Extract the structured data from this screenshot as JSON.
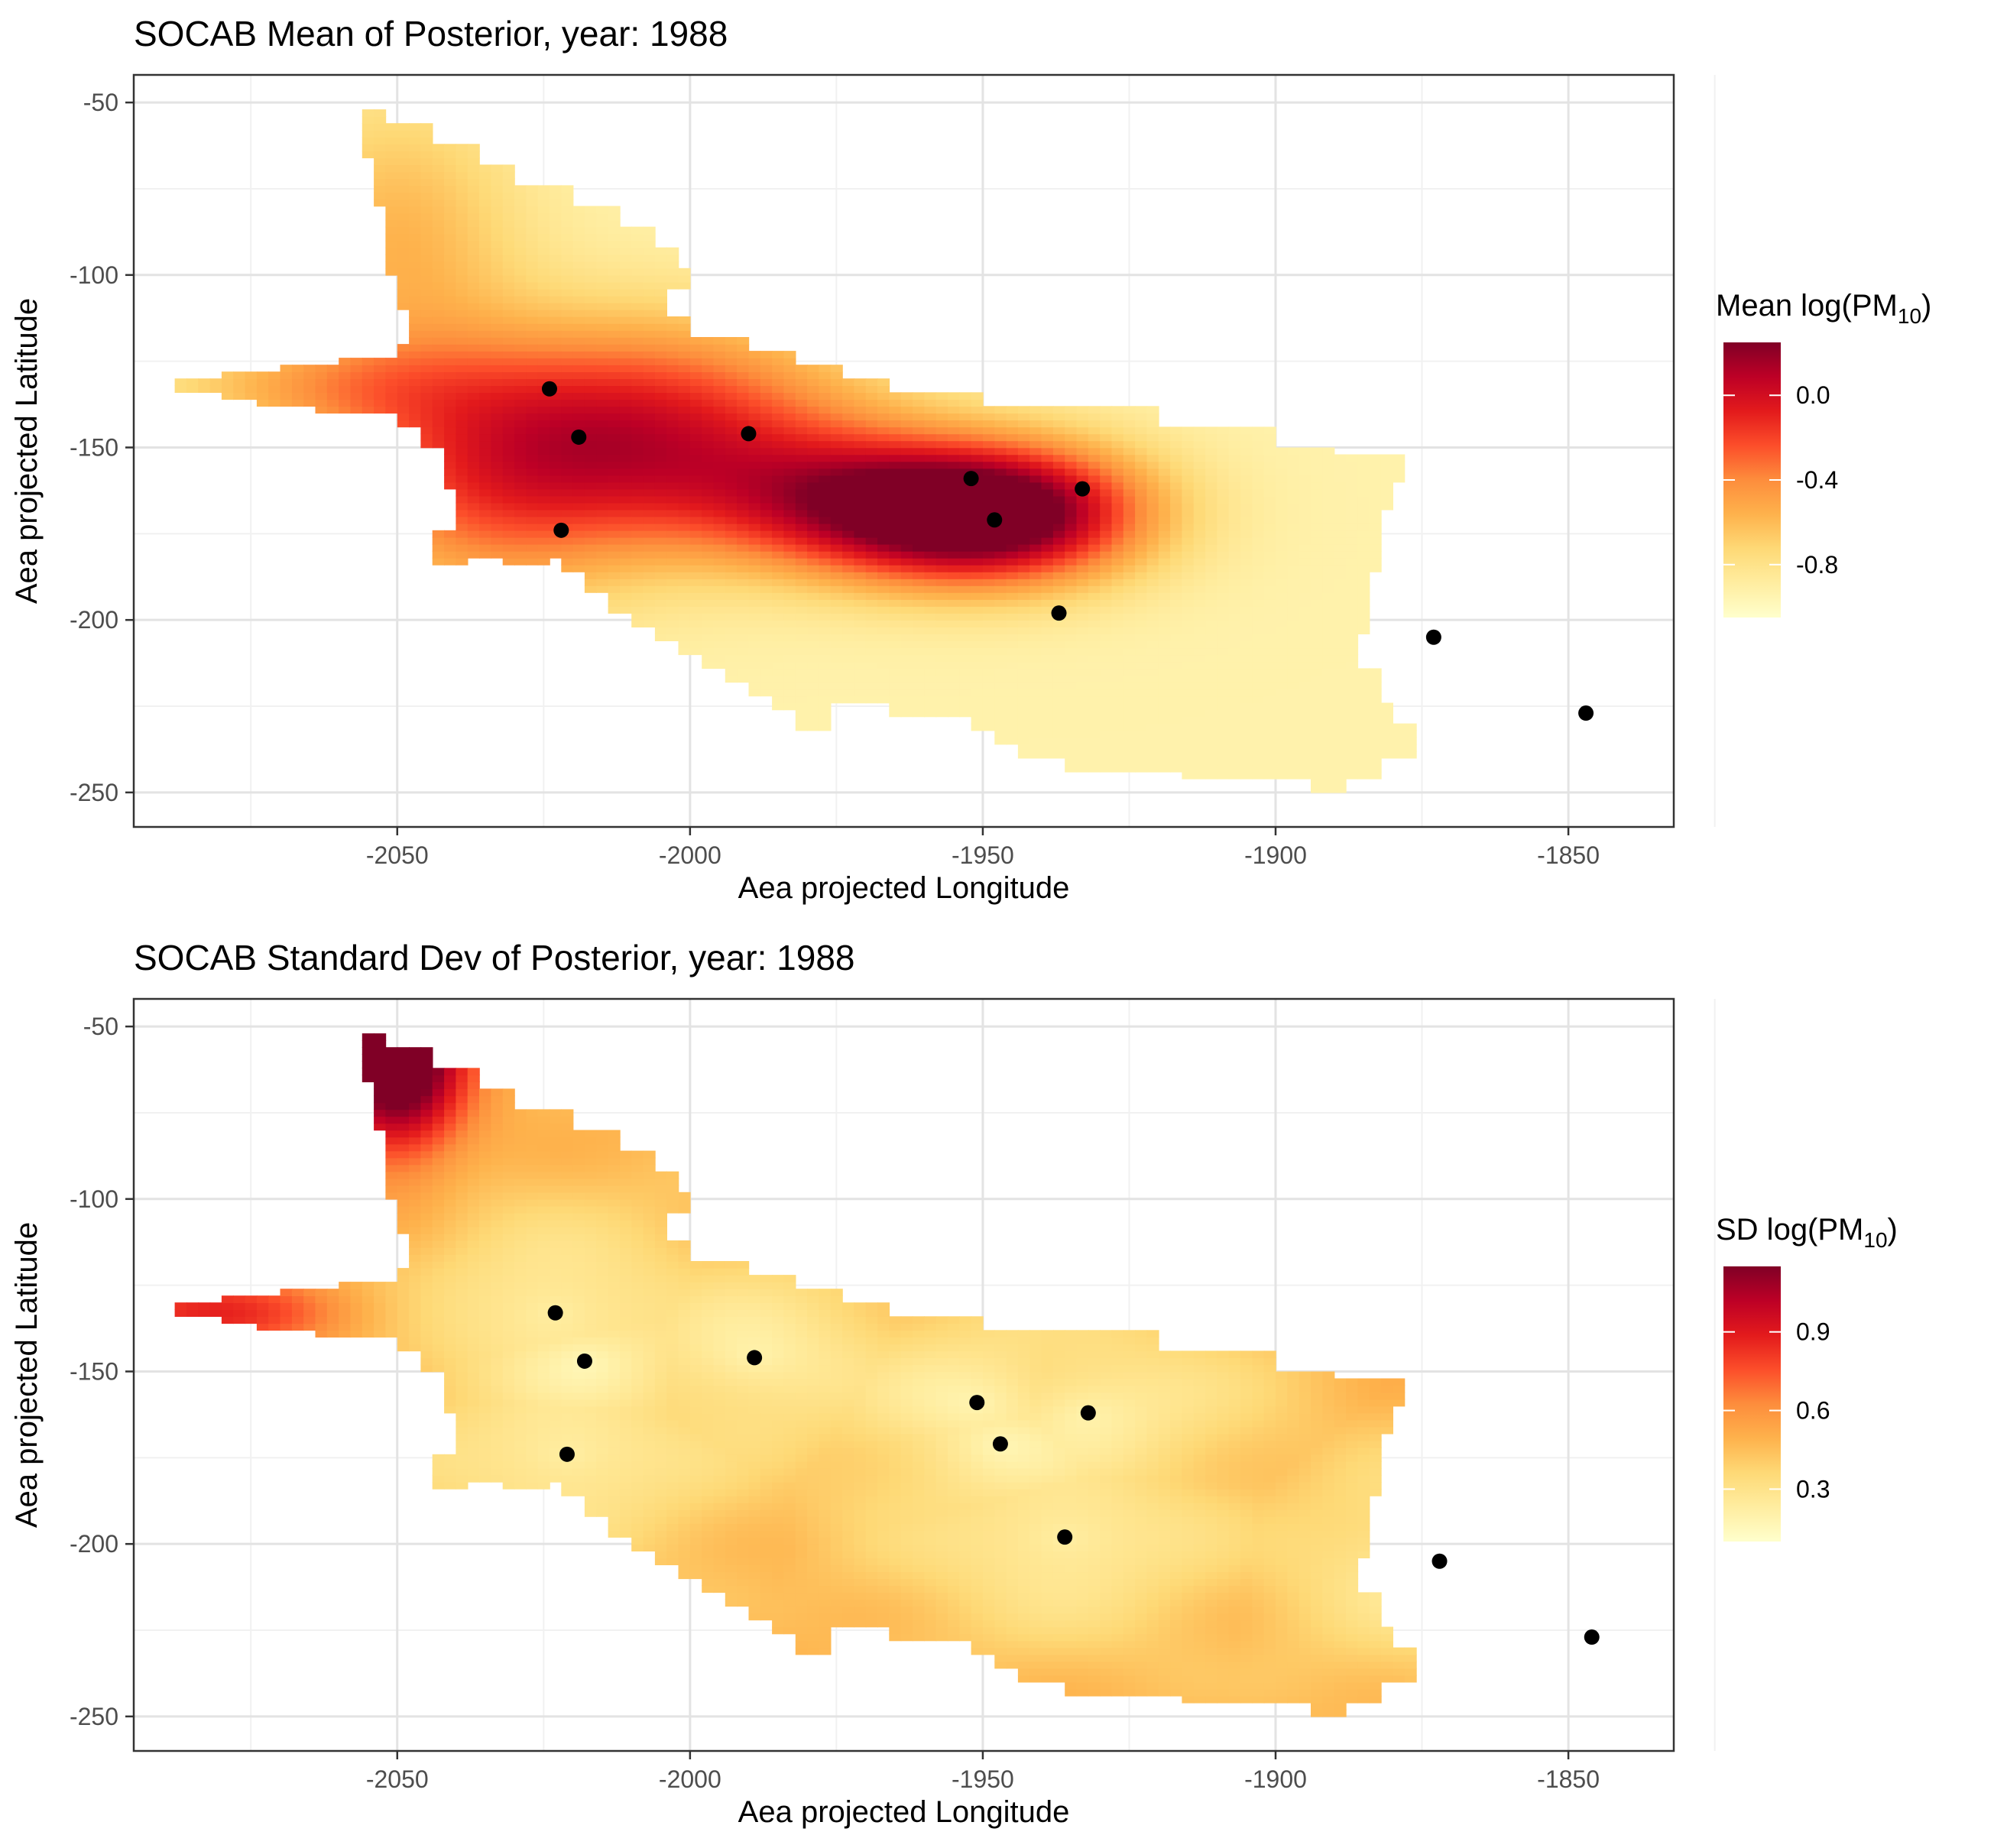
{
  "chart_data": [
    {
      "type": "heatmap",
      "title": "SOCAB Mean of Posterior, year:  1988",
      "xlabel": "Aea projected Longitude",
      "ylabel": "Aea projected Latitude",
      "xlim": [
        -2095,
        -1832
      ],
      "ylim": [
        -260,
        -42
      ],
      "x_ticks": [
        -2050,
        -2000,
        -1950,
        -1900,
        -1850
      ],
      "y_ticks": [
        -50,
        -100,
        -150,
        -200,
        -250
      ],
      "x_tick_labels": [
        "-2050",
        "-2000",
        "-1950",
        "-1900",
        "-1850"
      ],
      "y_tick_labels": [
        "-50",
        "-100",
        "-150",
        "-200",
        "-250"
      ],
      "grid": true,
      "legend": {
        "title_main": "Mean log(PM",
        "title_sub": "10",
        "title_end": ")",
        "position": "right",
        "range": [
          -1.05,
          0.25
        ],
        "ticks": [
          0.0,
          -0.4,
          -0.8
        ],
        "tick_labels": [
          "0.0",
          "-0.4",
          "-0.8"
        ],
        "colors": [
          "#ffffcc",
          "#ffeda0",
          "#fed976",
          "#feb24c",
          "#fd8d3c",
          "#fc4e2a",
          "#e31a1c",
          "#bd0026",
          "#800026"
        ]
      },
      "stations": [
        {
          "x": -2024,
          "y": -133
        },
        {
          "x": -2019,
          "y": -147
        },
        {
          "x": -2022,
          "y": -174
        },
        {
          "x": -1990,
          "y": -146
        },
        {
          "x": -1952,
          "y": -159
        },
        {
          "x": -1948,
          "y": -171
        },
        {
          "x": -1933,
          "y": -162
        },
        {
          "x": -1937,
          "y": -198
        },
        {
          "x": -1873,
          "y": -205
        },
        {
          "x": -1847,
          "y": -227
        }
      ],
      "surface": {
        "base": -0.93,
        "hotspots": [
          {
            "x": -1955,
            "y": -170,
            "amp": 0.95,
            "sx": 18,
            "sy": 14
          },
          {
            "x": -1940,
            "y": -168,
            "amp": 0.55,
            "sx": 16,
            "sy": 14
          },
          {
            "x": -2005,
            "y": -145,
            "amp": 0.8,
            "sx": 25,
            "sy": 22
          },
          {
            "x": -2035,
            "y": -160,
            "amp": 0.55,
            "sx": 20,
            "sy": 25
          },
          {
            "x": -2050,
            "y": -90,
            "amp": 0.35,
            "sx": 15,
            "sy": 30
          },
          {
            "x": -2065,
            "y": -132,
            "amp": 0.3,
            "sx": 20,
            "sy": 10
          },
          {
            "x": -1975,
            "y": -165,
            "amp": 0.5,
            "sx": 20,
            "sy": 14
          }
        ]
      }
    },
    {
      "type": "heatmap",
      "title": "SOCAB Standard Dev of Posterior, year:  1988",
      "xlabel": "Aea projected Longitude",
      "ylabel": "Aea projected Latitude",
      "xlim": [
        -2095,
        -1832
      ],
      "ylim": [
        -260,
        -42
      ],
      "x_ticks": [
        -2050,
        -2000,
        -1950,
        -1900,
        -1850
      ],
      "y_ticks": [
        -50,
        -100,
        -150,
        -200,
        -250
      ],
      "x_tick_labels": [
        "-2050",
        "-2000",
        "-1950",
        "-1900",
        "-1850"
      ],
      "y_tick_labels": [
        "-50",
        "-100",
        "-150",
        "-200",
        "-250"
      ],
      "grid": true,
      "legend": {
        "title_main": "SD log(PM",
        "title_sub": "10",
        "title_end": ")",
        "position": "right",
        "range": [
          0.1,
          1.15
        ],
        "ticks": [
          0.9,
          0.6,
          0.3
        ],
        "tick_labels": [
          "0.9",
          "0.6",
          "0.3"
        ],
        "colors": [
          "#ffffcc",
          "#ffeda0",
          "#fed976",
          "#feb24c",
          "#fd8d3c",
          "#fc4e2a",
          "#e31a1c",
          "#bd0026",
          "#800026"
        ]
      },
      "stations": [
        {
          "x": -2023,
          "y": -133
        },
        {
          "x": -2018,
          "y": -147
        },
        {
          "x": -2021,
          "y": -174
        },
        {
          "x": -1989,
          "y": -146
        },
        {
          "x": -1951,
          "y": -159
        },
        {
          "x": -1947,
          "y": -171
        },
        {
          "x": -1932,
          "y": -162
        },
        {
          "x": -1936,
          "y": -198
        },
        {
          "x": -1872,
          "y": -205
        },
        {
          "x": -1846,
          "y": -227
        }
      ],
      "surface": {
        "mode": "sd",
        "hotspots": [
          {
            "x": -2050,
            "y": -55,
            "amp": 0.9,
            "sx": 8,
            "sy": 22
          },
          {
            "x": -2080,
            "y": -133,
            "amp": 0.35,
            "sx": 18,
            "sy": 8
          }
        ]
      }
    }
  ],
  "region_outline": [
    [
      -2056,
      -52
    ],
    [
      -2052,
      -52
    ],
    [
      -2052,
      -56
    ],
    [
      -2044,
      -56
    ],
    [
      -2044,
      -62
    ],
    [
      -2036,
      -62
    ],
    [
      -2036,
      -68
    ],
    [
      -2030,
      -68
    ],
    [
      -2030,
      -74
    ],
    [
      -2020,
      -74
    ],
    [
      -2020,
      -80
    ],
    [
      -2012,
      -80
    ],
    [
      -2012,
      -86
    ],
    [
      -2006,
      -86
    ],
    [
      -2006,
      -92
    ],
    [
      -2002,
      -92
    ],
    [
      -2002,
      -97
    ],
    [
      -2000,
      -97
    ],
    [
      -2000,
      -104
    ],
    [
      -2004,
      -104
    ],
    [
      -2004,
      -112
    ],
    [
      -2000,
      -112
    ],
    [
      -2000,
      -118
    ],
    [
      -1990,
      -118
    ],
    [
      -1990,
      -122
    ],
    [
      -1982,
      -122
    ],
    [
      -1982,
      -126
    ],
    [
      -1974,
      -126
    ],
    [
      -1974,
      -130
    ],
    [
      -1966,
      -130
    ],
    [
      -1966,
      -134
    ],
    [
      -1950,
      -134
    ],
    [
      -1950,
      -138
    ],
    [
      -1920,
      -138
    ],
    [
      -1920,
      -144
    ],
    [
      -1900,
      -144
    ],
    [
      -1900,
      -150
    ],
    [
      -1890,
      -150
    ],
    [
      -1890,
      -152
    ],
    [
      -1878,
      -152
    ],
    [
      -1878,
      -160
    ],
    [
      -1880,
      -160
    ],
    [
      -1880,
      -168
    ],
    [
      -1882,
      -168
    ],
    [
      -1882,
      -186
    ],
    [
      -1884,
      -186
    ],
    [
      -1884,
      -204
    ],
    [
      -1886,
      -204
    ],
    [
      -1886,
      -214
    ],
    [
      -1882,
      -214
    ],
    [
      -1882,
      -224
    ],
    [
      -1880,
      -224
    ],
    [
      -1880,
      -230
    ],
    [
      -1876,
      -230
    ],
    [
      -1876,
      -240
    ],
    [
      -1882,
      -240
    ],
    [
      -1882,
      -246
    ],
    [
      -1888,
      -246
    ],
    [
      -1888,
      -250
    ],
    [
      -1894,
      -250
    ],
    [
      -1894,
      -246
    ],
    [
      -1916,
      -246
    ],
    [
      -1916,
      -244
    ],
    [
      -1936,
      -244
    ],
    [
      -1936,
      -240
    ],
    [
      -1944,
      -240
    ],
    [
      -1944,
      -236
    ],
    [
      -1948,
      -236
    ],
    [
      -1948,
      -232
    ],
    [
      -1952,
      -232
    ],
    [
      -1952,
      -228
    ],
    [
      -1966,
      -228
    ],
    [
      -1966,
      -224
    ],
    [
      -1976,
      -224
    ],
    [
      -1976,
      -232
    ],
    [
      -1982,
      -232
    ],
    [
      -1982,
      -226
    ],
    [
      -1986,
      -226
    ],
    [
      -1986,
      -222
    ],
    [
      -1990,
      -222
    ],
    [
      -1990,
      -218
    ],
    [
      -1994,
      -218
    ],
    [
      -1994,
      -214
    ],
    [
      -1998,
      -214
    ],
    [
      -1998,
      -210
    ],
    [
      -2002,
      -210
    ],
    [
      -2002,
      -206
    ],
    [
      -2006,
      -206
    ],
    [
      -2006,
      -202
    ],
    [
      -2010,
      -202
    ],
    [
      -2010,
      -198
    ],
    [
      -2014,
      -198
    ],
    [
      -2014,
      -192
    ],
    [
      -2018,
      -192
    ],
    [
      -2018,
      -186
    ],
    [
      -2022,
      -186
    ],
    [
      -2022,
      -182
    ],
    [
      -2024,
      -182
    ],
    [
      -2024,
      -184
    ],
    [
      -2032,
      -184
    ],
    [
      -2032,
      -182
    ],
    [
      -2038,
      -182
    ],
    [
      -2038,
      -184
    ],
    [
      -2044,
      -184
    ],
    [
      -2044,
      -174
    ],
    [
      -2040,
      -174
    ],
    [
      -2040,
      -162
    ],
    [
      -2042,
      -162
    ],
    [
      -2042,
      -150
    ],
    [
      -2046,
      -150
    ],
    [
      -2046,
      -144
    ],
    [
      -2050,
      -144
    ],
    [
      -2050,
      -140
    ],
    [
      -2064,
      -140
    ],
    [
      -2064,
      -138
    ],
    [
      -2074,
      -138
    ],
    [
      -2074,
      -136
    ],
    [
      -2080,
      -136
    ],
    [
      -2080,
      -134
    ],
    [
      -2087,
      -134
    ],
    [
      -2087,
      -130
    ],
    [
      -2080,
      -130
    ],
    [
      -2080,
      -128
    ],
    [
      -2070,
      -128
    ],
    [
      -2070,
      -126
    ],
    [
      -2060,
      -126
    ],
    [
      -2060,
      -124
    ],
    [
      -2050,
      -124
    ],
    [
      -2050,
      -120
    ],
    [
      -2048,
      -120
    ],
    [
      -2048,
      -110
    ],
    [
      -2050,
      -110
    ],
    [
      -2050,
      -100
    ],
    [
      -2052,
      -100
    ],
    [
      -2052,
      -80
    ],
    [
      -2054,
      -80
    ],
    [
      -2054,
      -66
    ],
    [
      -2056,
      -66
    ]
  ]
}
